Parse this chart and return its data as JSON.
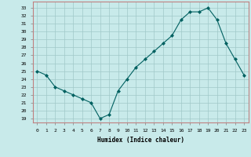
{
  "x": [
    0,
    1,
    2,
    3,
    4,
    5,
    6,
    7,
    8,
    9,
    10,
    11,
    12,
    13,
    14,
    15,
    16,
    17,
    18,
    19,
    20,
    21,
    22,
    23
  ],
  "y": [
    25.0,
    24.5,
    23.0,
    22.5,
    22.0,
    21.5,
    21.0,
    19.0,
    19.5,
    22.5,
    24.0,
    25.5,
    26.5,
    27.5,
    28.5,
    29.5,
    31.5,
    32.5,
    32.5,
    33.0,
    31.5,
    28.5,
    26.5,
    24.5
  ],
  "line_color": "#006060",
  "marker": "D",
  "marker_size": 2,
  "background_color": "#c8eaea",
  "grid_color": "#a0c8c8",
  "xlabel": "Humidex (Indice chaleur)",
  "ylabel_ticks": [
    19,
    20,
    21,
    22,
    23,
    24,
    25,
    26,
    27,
    28,
    29,
    30,
    31,
    32,
    33
  ],
  "ylim": [
    18.5,
    33.8
  ],
  "xlim": [
    -0.5,
    23.5
  ]
}
